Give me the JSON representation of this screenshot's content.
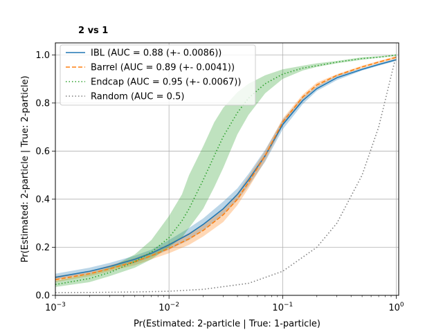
{
  "chart_data": {
    "type": "line",
    "title": "2 vs 1",
    "xlabel": "Pr(Estimated: 2-particle | True: 1-particle)",
    "ylabel": "Pr(Estimated: 2-particle | True: 2-particle)",
    "xscale": "log",
    "xlim": [
      0.001,
      1.05
    ],
    "ylim": [
      0.0,
      1.05
    ],
    "x_ticks": [
      {
        "value": 0.001,
        "base": "10",
        "exp": "−3"
      },
      {
        "value": 0.01,
        "base": "10",
        "exp": "−2"
      },
      {
        "value": 0.1,
        "base": "10",
        "exp": "−1"
      },
      {
        "value": 1,
        "base": "10",
        "exp": "0"
      }
    ],
    "y_ticks": [
      {
        "value": 0.0,
        "label": "0.0"
      },
      {
        "value": 0.2,
        "label": "0.2"
      },
      {
        "value": 0.4,
        "label": "0.4"
      },
      {
        "value": 0.6,
        "label": "0.6"
      },
      {
        "value": 0.8,
        "label": "0.8"
      },
      {
        "value": 1.0,
        "label": "1.0"
      }
    ],
    "grid": true,
    "legend_position": "top-left",
    "series": [
      {
        "name": "IBL (AUC = 0.88 (+- 0.0086))",
        "color": "#1f77b4",
        "style": "solid",
        "x": [
          0.001,
          0.002,
          0.003,
          0.005,
          0.007,
          0.01,
          0.015,
          0.02,
          0.03,
          0.04,
          0.05,
          0.07,
          0.1,
          0.15,
          0.2,
          0.3,
          0.5,
          0.7,
          1.0
        ],
        "y": [
          0.075,
          0.1,
          0.12,
          0.15,
          0.175,
          0.21,
          0.255,
          0.295,
          0.36,
          0.42,
          0.48,
          0.58,
          0.71,
          0.81,
          0.86,
          0.905,
          0.94,
          0.96,
          0.98
        ],
        "band_lower": [
          0.065,
          0.09,
          0.11,
          0.135,
          0.16,
          0.19,
          0.23,
          0.27,
          0.335,
          0.395,
          0.455,
          0.555,
          0.69,
          0.795,
          0.85,
          0.895,
          0.935,
          0.955,
          0.975
        ],
        "band_upper": [
          0.09,
          0.115,
          0.135,
          0.165,
          0.19,
          0.23,
          0.28,
          0.32,
          0.39,
          0.445,
          0.505,
          0.605,
          0.73,
          0.825,
          0.87,
          0.915,
          0.945,
          0.965,
          0.985
        ]
      },
      {
        "name": "Barrel (AUC = 0.89 (+- 0.0041))",
        "color": "#ff7f0e",
        "style": "dashed",
        "x": [
          0.001,
          0.002,
          0.003,
          0.005,
          0.007,
          0.01,
          0.015,
          0.02,
          0.03,
          0.04,
          0.05,
          0.07,
          0.1,
          0.15,
          0.2,
          0.3,
          0.5,
          0.7,
          1.0
        ],
        "y": [
          0.065,
          0.09,
          0.11,
          0.14,
          0.165,
          0.195,
          0.235,
          0.27,
          0.335,
          0.4,
          0.47,
          0.58,
          0.72,
          0.825,
          0.875,
          0.915,
          0.95,
          0.97,
          0.99
        ],
        "band_lower": [
          0.055,
          0.08,
          0.1,
          0.125,
          0.15,
          0.175,
          0.21,
          0.245,
          0.305,
          0.375,
          0.445,
          0.56,
          0.705,
          0.815,
          0.865,
          0.91,
          0.945,
          0.965,
          0.985
        ],
        "band_upper": [
          0.08,
          0.1,
          0.125,
          0.155,
          0.18,
          0.215,
          0.26,
          0.295,
          0.36,
          0.425,
          0.495,
          0.6,
          0.735,
          0.835,
          0.885,
          0.92,
          0.955,
          0.975,
          0.995
        ]
      },
      {
        "name": "Endcap (AUC = 0.95 (+- 0.0067))",
        "color": "#2ca02c",
        "style": "dotted",
        "x": [
          0.001,
          0.002,
          0.003,
          0.005,
          0.007,
          0.01,
          0.013,
          0.015,
          0.02,
          0.025,
          0.03,
          0.04,
          0.05,
          0.07,
          0.1,
          0.15,
          0.2,
          0.3,
          0.5,
          0.7,
          1.0
        ],
        "y": [
          0.045,
          0.07,
          0.095,
          0.14,
          0.18,
          0.24,
          0.31,
          0.36,
          0.48,
          0.58,
          0.66,
          0.76,
          0.82,
          0.88,
          0.92,
          0.945,
          0.955,
          0.97,
          0.985,
          0.99,
          1.0
        ],
        "band_lower": [
          0.035,
          0.055,
          0.08,
          0.115,
          0.15,
          0.2,
          0.24,
          0.28,
          0.36,
          0.45,
          0.53,
          0.67,
          0.75,
          0.84,
          0.9,
          0.935,
          0.95,
          0.965,
          0.98,
          0.988,
          0.995
        ],
        "band_upper": [
          0.06,
          0.09,
          0.115,
          0.17,
          0.23,
          0.33,
          0.42,
          0.5,
          0.62,
          0.72,
          0.78,
          0.845,
          0.88,
          0.915,
          0.94,
          0.955,
          0.965,
          0.975,
          0.99,
          0.995,
          1.0
        ]
      },
      {
        "name": "Random (AUC = 0.5)",
        "color": "#7f7f7f",
        "style": "dotted",
        "x": [
          0.001,
          0.002,
          0.005,
          0.01,
          0.02,
          0.05,
          0.1,
          0.2,
          0.3,
          0.5,
          0.7,
          1.0
        ],
        "y": [
          0.011,
          0.012,
          0.014,
          0.017,
          0.025,
          0.05,
          0.1,
          0.2,
          0.3,
          0.5,
          0.7,
          1.0
        ]
      }
    ]
  }
}
